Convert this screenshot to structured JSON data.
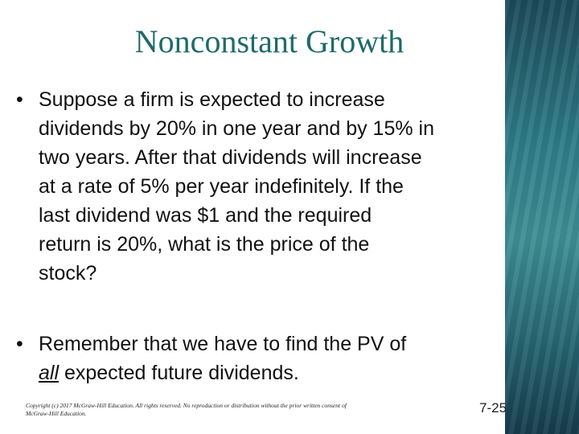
{
  "header": {
    "title": "Nonconstant Growth"
  },
  "bullets": [
    {
      "lines": [
        "Suppose a firm is expected to increase",
        "dividends by 20% in one year and by 15% in",
        "two years. After that dividends will increase",
        "at a rate of 5% per year indefinitely. If the",
        "last dividend was $1 and the required",
        "return is 20%, what is the price of the",
        "stock?"
      ]
    },
    {
      "first_line": "Remember that we have to find the PV of",
      "emphasis": "all",
      "rest": "expected future dividends."
    }
  ],
  "footer": {
    "copyright_lines": [
      "Copyright (c) 2017 McGraw-Hill Education. All rights reserved. No reproduction or distribution without the prior written consent of",
      "McGraw-Hill Education."
    ],
    "slide_number": "7-25"
  }
}
